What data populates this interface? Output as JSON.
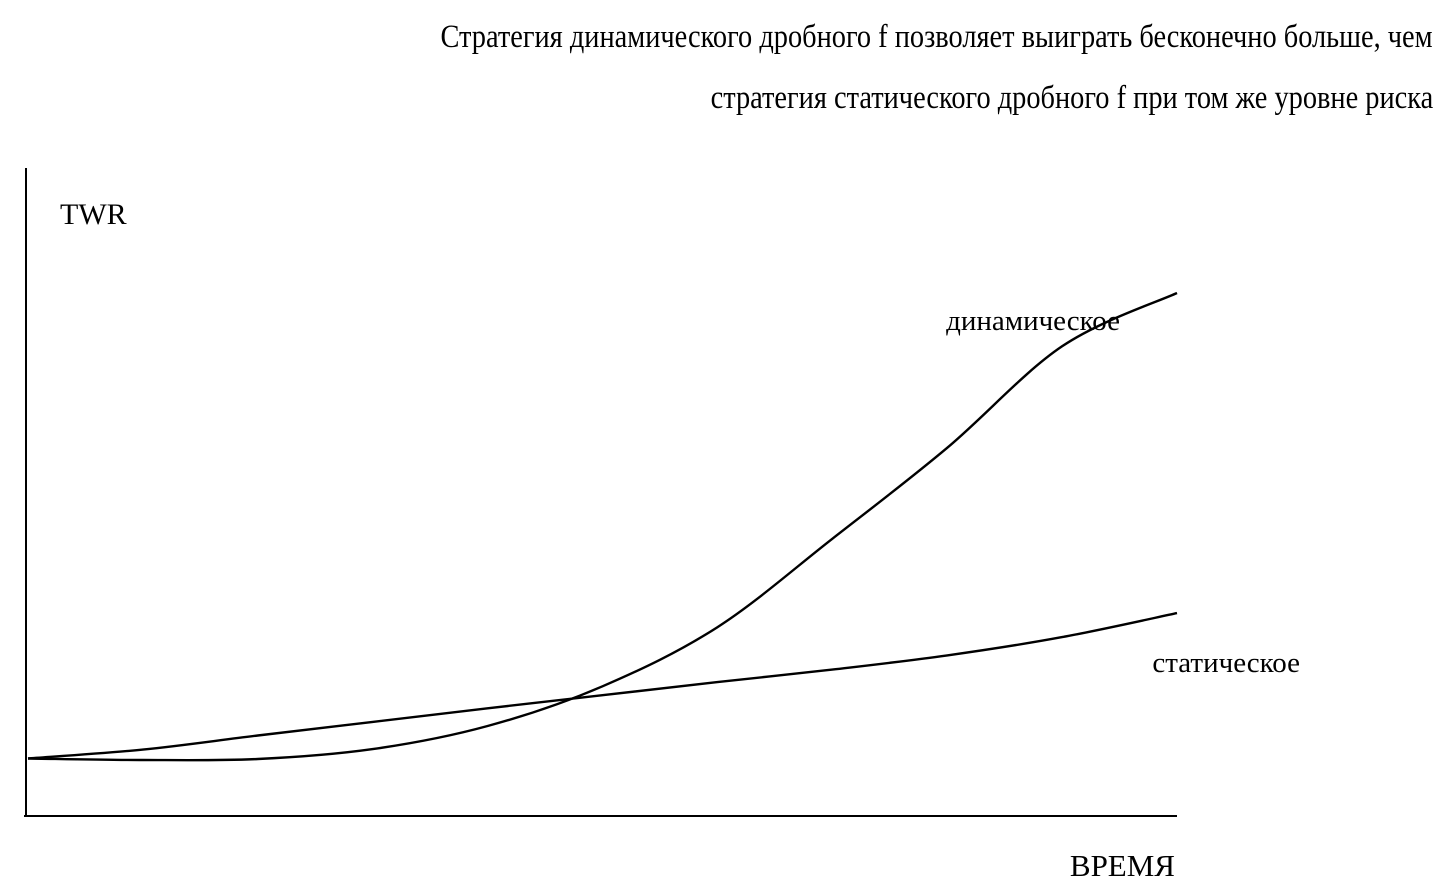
{
  "caption": {
    "line1": "Стратегия динамического дробного f позволяет выиграть бесконечно больше, чем",
    "line2": "стратегия статического дробного f при том же уровне риска"
  },
  "chart_data": {
    "type": "line",
    "title": "",
    "xlabel": "ВРЕМЯ",
    "ylabel": "TWR",
    "xlim": [
      0,
      100
    ],
    "ylim": [
      0,
      100
    ],
    "grid": false,
    "legend": "none",
    "series": [
      {
        "name": "динамическое",
        "color": "#000000",
        "points": [
          [
            0,
            11.0
          ],
          [
            10,
            10.7
          ],
          [
            20,
            10.9
          ],
          [
            30,
            12.8
          ],
          [
            40,
            17.2
          ],
          [
            50,
            24.8
          ],
          [
            60,
            36.1
          ],
          [
            70,
            53.0
          ],
          [
            80,
            70.4
          ],
          [
            90,
            89.8
          ],
          [
            100,
            100.0
          ]
        ]
      },
      {
        "name": "статическое",
        "color": "#000000",
        "points": [
          [
            0,
            11.0
          ],
          [
            10,
            12.7
          ],
          [
            20,
            15.4
          ],
          [
            30,
            18.0
          ],
          [
            40,
            20.6
          ],
          [
            50,
            23.1
          ],
          [
            60,
            25.6
          ],
          [
            70,
            28.0
          ],
          [
            80,
            30.7
          ],
          [
            90,
            34.2
          ],
          [
            100,
            38.8
          ]
        ]
      }
    ]
  }
}
